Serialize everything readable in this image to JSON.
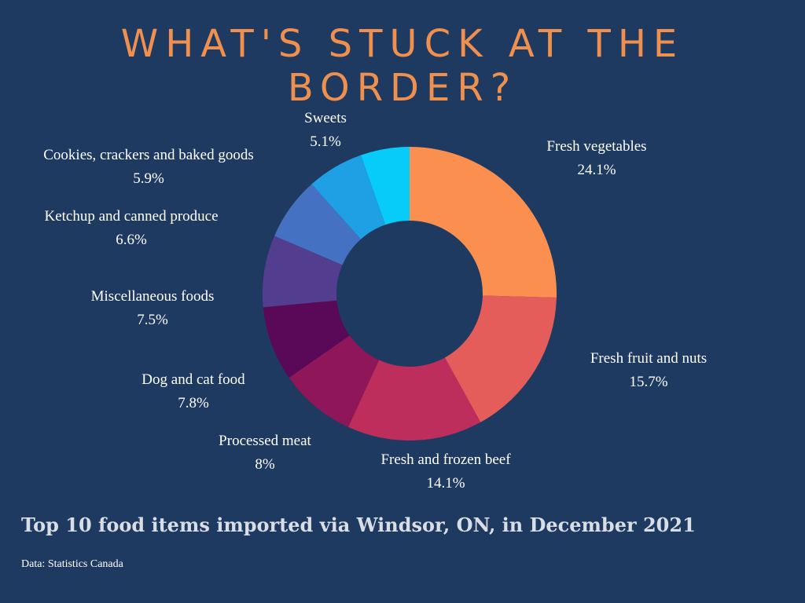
{
  "title_line1": "WHAT'S STUCK AT THE",
  "title_line2": "BORDER?",
  "subtitle": "Top 10 food items imported via Windsor, ON, in December 2021",
  "source": "Data: Statistics Canada",
  "chart_data": {
    "type": "pie",
    "donut": true,
    "categories": [
      "Fresh vegetables",
      "Fresh fruit and nuts",
      "Fresh and frozen beef",
      "Processed meat",
      "Dog and cat food",
      "Miscellaneous foods",
      "Ketchup and canned produce",
      "Cookies, crackers and baked goods",
      "Sweets"
    ],
    "values": [
      24.1,
      15.7,
      14.1,
      8,
      7.8,
      7.5,
      6.6,
      5.9,
      5.1
    ],
    "value_labels": [
      "24.1%",
      "15.7%",
      "14.1%",
      "8%",
      "7.8%",
      "7.5%",
      "6.6%",
      "5.9%",
      "5.1%"
    ],
    "colors": [
      "#fb8f4f",
      "#e45d5b",
      "#bd2e5c",
      "#8e1659",
      "#5a0958",
      "#533d8e",
      "#4571c2",
      "#1f9fe4",
      "#07ccf9"
    ]
  }
}
